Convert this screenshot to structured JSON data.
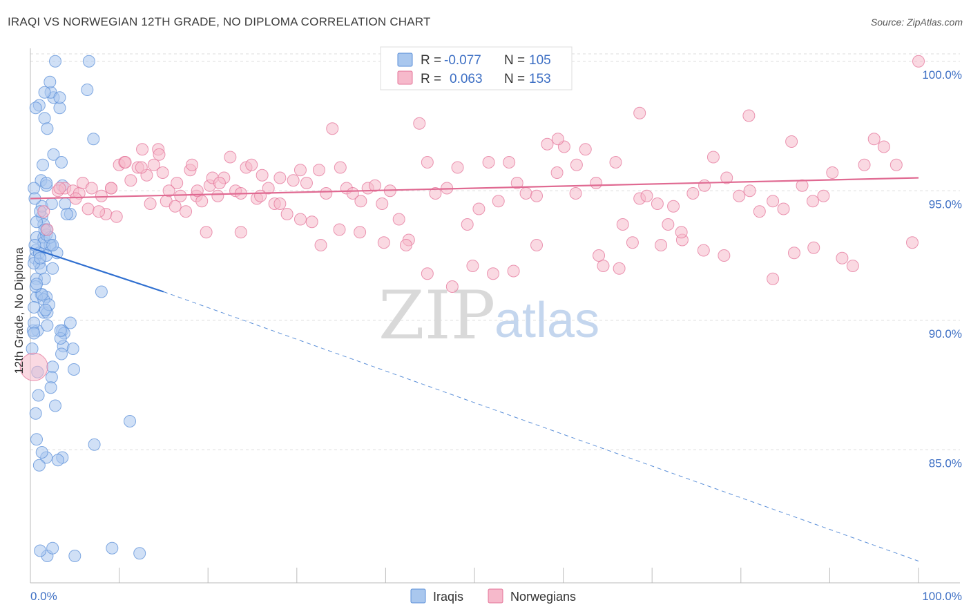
{
  "title": "IRAQI VS NORWEGIAN 12TH GRADE, NO DIPLOMA CORRELATION CHART",
  "source": "Source: ZipAtlas.com",
  "watermark": {
    "zip": "ZIP",
    "atlas": "atlas"
  },
  "legend": {
    "r_label": "R =",
    "n_label": "N =",
    "rows": [
      {
        "r": "-0.077",
        "n": "105",
        "color": "#a9c7ee"
      },
      {
        "r": "0.063",
        "n": "153",
        "color": "#f6b9cb"
      }
    ]
  },
  "bottom_legend": [
    {
      "label": "Iraqis",
      "color": "#a9c7ee"
    },
    {
      "label": "Norwegians",
      "color": "#f6b9cb"
    }
  ],
  "chart_data": {
    "type": "scatter",
    "title": "IRAQI VS NORWEGIAN 12TH GRADE, NO DIPLOMA CORRELATION CHART",
    "xlabel": "",
    "ylabel": "12th Grade, No Diploma",
    "xlim": [
      0,
      100
    ],
    "ylim": [
      80.5,
      100.5
    ],
    "x_tick_labels": [
      "0.0%",
      "100.0%"
    ],
    "y_ticks": [
      85,
      90,
      95,
      100
    ],
    "y_tick_labels": [
      "85.0%",
      "90.0%",
      "95.0%",
      "100.0%"
    ],
    "grid": true,
    "legend_position": "top-center",
    "series": [
      {
        "name": "Iraqis",
        "color": "#5b8fd8",
        "fill": "#a9c7ee",
        "r": -0.077,
        "n": 105,
        "trend": {
          "x": [
            0,
            15
          ],
          "y": [
            92.8,
            91.1
          ],
          "dashed_to": [
            100,
            80.7
          ]
        },
        "x": [
          2.8,
          6.6,
          0.5,
          1.0,
          2.6,
          2.3,
          3.3,
          1.6,
          1.9,
          1.6,
          2.2,
          3.3,
          6.4,
          0.6,
          1.3,
          1.4,
          7.1,
          2.6,
          1.2,
          3.5,
          1.8,
          0.4,
          1.8,
          3.6,
          3.9,
          1.3,
          0.5,
          1.5,
          0.7,
          1.8,
          1.1,
          2.4,
          0.7,
          1.5,
          2.3,
          0.6,
          1.6,
          4.5,
          1.0,
          2.2,
          0.7,
          1.2,
          1.5,
          0.8,
          3.7,
          0.3,
          1.8,
          1.2,
          1.6,
          0.4,
          1.5,
          1.8,
          8.0,
          2.2,
          1.0,
          3.0,
          1.8,
          2.5,
          0.7,
          0.4,
          1.5,
          1.3,
          1.9,
          3.6,
          3.8,
          4.8,
          0.4,
          4.5,
          3.4,
          4.9,
          0.8,
          2.5,
          3.5,
          2.1,
          1.9,
          0.2,
          2.8,
          0.6,
          11.2,
          7.2,
          3.6,
          3.1,
          1.8,
          1.0,
          1.3,
          0.9,
          2.4,
          0.7,
          2.3,
          1.9,
          2.5,
          1.1,
          5.0,
          9.2,
          12.3,
          1.7,
          1.6,
          4.1,
          3.4,
          0.6,
          0.4,
          0.5,
          0.7,
          1.1,
          2.5
        ],
        "y": [
          100.0,
          100.0,
          92.4,
          98.3,
          98.6,
          98.8,
          98.2,
          97.8,
          97.4,
          98.8,
          99.2,
          98.6,
          98.9,
          98.2,
          94.0,
          96.0,
          97.0,
          96.4,
          95.4,
          96.1,
          95.2,
          95.1,
          95.3,
          95.2,
          94.5,
          94.4,
          94.7,
          93.7,
          93.8,
          93.5,
          94.2,
          94.5,
          93.2,
          93.2,
          92.9,
          92.7,
          92.8,
          94.1,
          92.2,
          92.9,
          91.6,
          91.0,
          90.3,
          89.6,
          89.0,
          89.6,
          90.9,
          92.0,
          91.6,
          92.2,
          93.0,
          93.3,
          91.1,
          93.2,
          92.6,
          92.6,
          92.5,
          92.9,
          90.9,
          90.5,
          90.8,
          91.0,
          90.3,
          89.6,
          89.5,
          88.9,
          89.9,
          89.9,
          89.3,
          88.1,
          88.0,
          88.2,
          88.7,
          90.6,
          89.8,
          88.9,
          86.7,
          86.4,
          86.1,
          85.2,
          84.7,
          84.6,
          84.7,
          84.4,
          84.9,
          87.1,
          87.8,
          85.4,
          87.4,
          80.9,
          81.2,
          81.1,
          80.9,
          81.2,
          81.0,
          90.4,
          93.5,
          94.1,
          89.6,
          91.3,
          89.5,
          92.9,
          91.4,
          92.4,
          92.0
        ]
      },
      {
        "name": "Norwegians",
        "color": "#e47499",
        "fill": "#f6b9cb",
        "r": 0.063,
        "n": 153,
        "trend": {
          "x": [
            0,
            100
          ],
          "y": [
            94.7,
            95.5
          ]
        },
        "x": [
          0.4,
          1.5,
          1.9,
          3.1,
          3.9,
          4.8,
          5.5,
          5.9,
          6.5,
          6.9,
          8.0,
          8.5,
          9.1,
          9.7,
          10.0,
          10.6,
          11.3,
          12.1,
          12.6,
          13.1,
          13.5,
          13.9,
          14.4,
          14.9,
          15.3,
          15.6,
          16.5,
          16.9,
          17.5,
          18.0,
          18.2,
          18.7,
          19.3,
          19.8,
          20.2,
          20.5,
          21.1,
          21.8,
          22.5,
          23.1,
          23.7,
          24.3,
          24.9,
          25.5,
          26.1,
          26.8,
          27.5,
          28.1,
          28.9,
          29.6,
          30.4,
          31.1,
          31.7,
          32.5,
          33.3,
          34.0,
          34.9,
          35.6,
          36.3,
          37.2,
          38.0,
          38.8,
          39.6,
          40.5,
          41.5,
          42.6,
          43.8,
          44.7,
          45.6,
          46.9,
          48.1,
          49.2,
          50.5,
          51.6,
          52.7,
          53.9,
          54.8,
          55.8,
          57.0,
          58.2,
          59.3,
          60.1,
          61.4,
          62.5,
          63.7,
          64.5,
          65.9,
          66.7,
          67.8,
          68.6,
          69.4,
          70.6,
          71.8,
          72.4,
          73.4,
          74.6,
          75.9,
          76.9,
          78.4,
          79.8,
          81.0,
          82.1,
          83.6,
          84.8,
          85.7,
          86.9,
          88.1,
          89.3,
          90.3,
          91.4,
          92.6,
          93.9,
          95.0,
          96.1,
          97.5,
          99.3,
          100.0,
          3.3,
          5.1,
          7.7,
          9.1,
          10.7,
          12.5,
          14.5,
          16.3,
          18.8,
          21.3,
          23.7,
          25.9,
          28.1,
          30.4,
          32.7,
          34.8,
          37.1,
          39.8,
          42.3,
          44.7,
          47.5,
          49.8,
          52.1,
          54.4,
          57.0,
          59.4,
          61.5,
          64.0,
          66.3,
          68.6,
          71.0,
          73.3,
          75.8,
          78.1,
          80.9,
          83.6,
          86.0,
          88.2
        ],
        "y": [
          88.2,
          94.2,
          93.5,
          95.0,
          95.1,
          95.0,
          94.9,
          95.3,
          94.3,
          95.1,
          94.8,
          94.1,
          95.1,
          94.0,
          96.0,
          96.1,
          95.4,
          95.9,
          96.6,
          95.6,
          94.5,
          96.0,
          96.6,
          95.7,
          94.6,
          95.0,
          95.3,
          94.8,
          94.2,
          95.8,
          96.0,
          94.8,
          94.6,
          93.4,
          95.2,
          95.5,
          94.8,
          95.5,
          96.3,
          95.0,
          94.9,
          95.9,
          96.0,
          94.7,
          95.6,
          95.1,
          94.5,
          94.5,
          94.1,
          95.4,
          95.8,
          95.3,
          93.8,
          95.8,
          94.9,
          97.4,
          95.9,
          95.1,
          94.9,
          94.6,
          95.1,
          95.2,
          94.5,
          95.0,
          93.9,
          93.1,
          97.6,
          96.1,
          94.9,
          95.1,
          95.9,
          93.7,
          94.3,
          96.1,
          94.6,
          96.1,
          95.3,
          94.9,
          94.8,
          96.8,
          95.7,
          96.7,
          94.9,
          96.6,
          95.3,
          92.1,
          96.1,
          93.7,
          93.0,
          94.7,
          94.8,
          94.5,
          93.7,
          94.4,
          93.1,
          94.9,
          95.2,
          96.3,
          95.5,
          94.8,
          95.0,
          94.2,
          94.6,
          94.3,
          96.9,
          95.2,
          94.6,
          94.8,
          95.7,
          92.4,
          92.1,
          96.0,
          97.0,
          96.7,
          96.0,
          93.0,
          100.0,
          95.1,
          94.7,
          94.2,
          95.1,
          96.1,
          95.9,
          96.4,
          94.4,
          95.0,
          95.3,
          93.4,
          94.8,
          95.5,
          93.9,
          92.9,
          93.5,
          93.4,
          93.0,
          92.9,
          91.8,
          91.3,
          92.1,
          91.8,
          91.9,
          92.9,
          97.0,
          96.0,
          92.5,
          92.0,
          98.0,
          92.9,
          93.4,
          92.7,
          92.5,
          97.9,
          91.6,
          92.6,
          92.8
        ]
      }
    ]
  }
}
